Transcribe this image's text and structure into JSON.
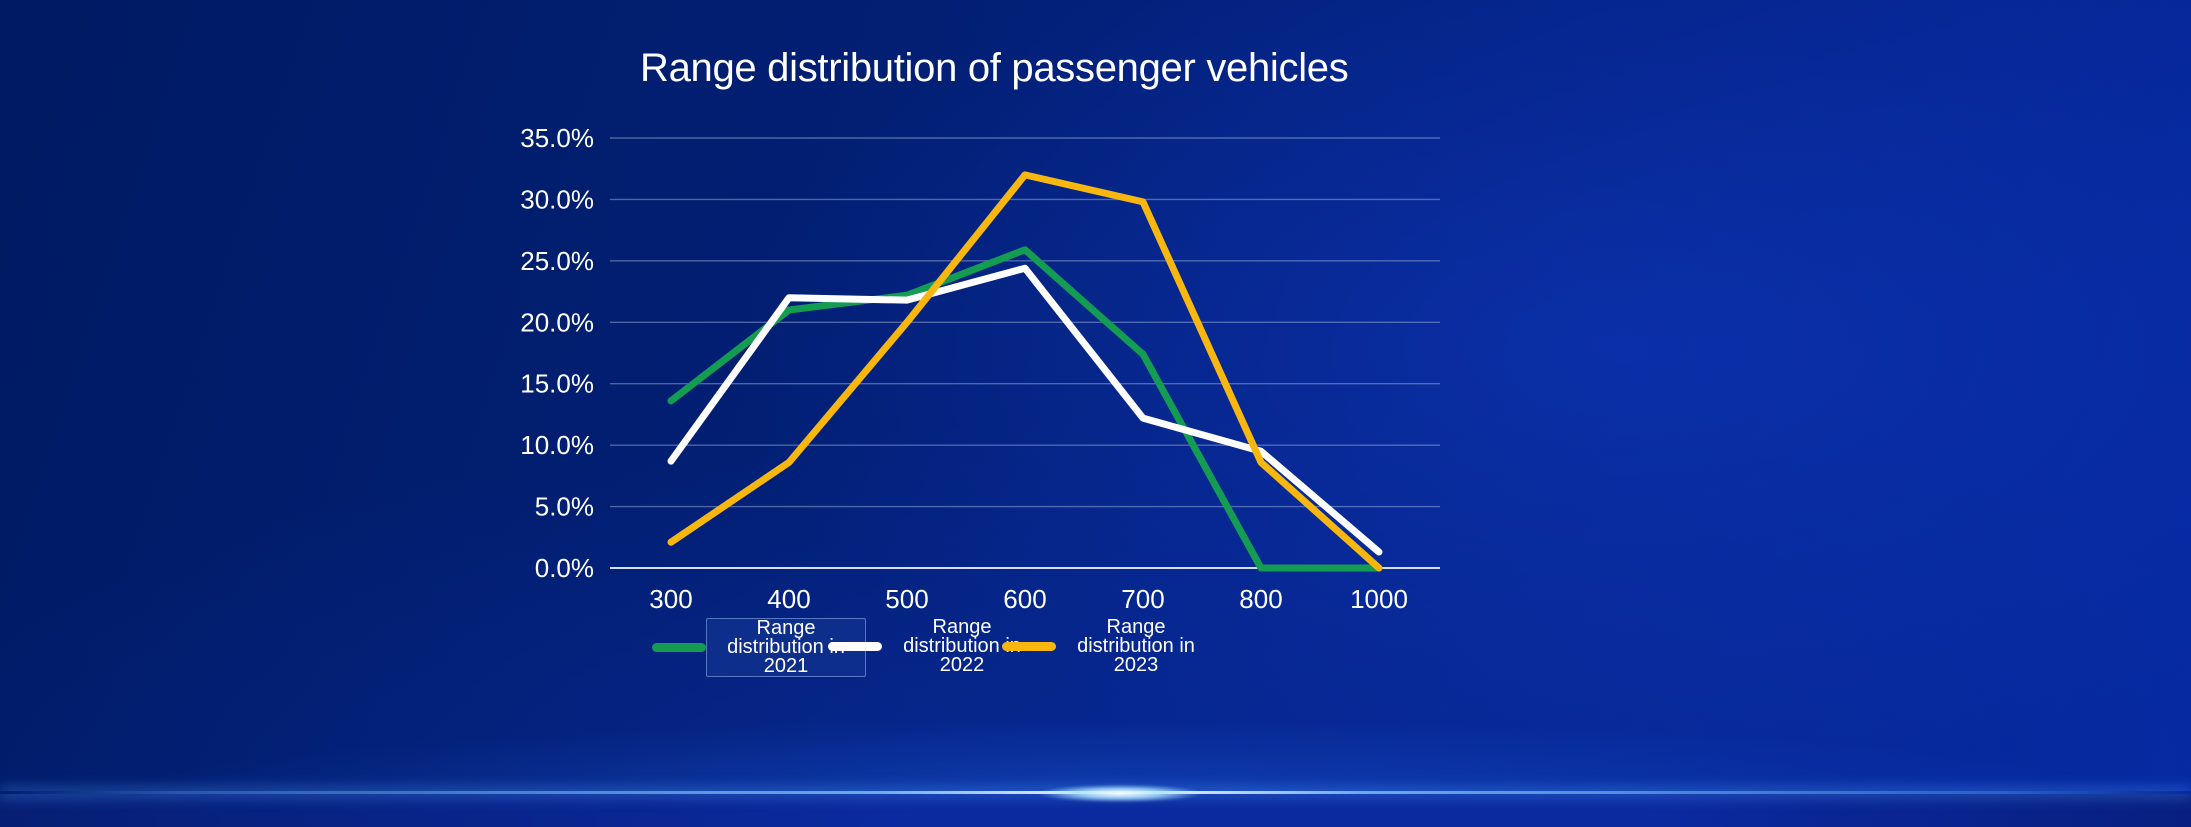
{
  "colors": {
    "background_dark": "#001a63",
    "background_light": "#0629a2",
    "text": "#ffffff",
    "gridline": "#aabce0",
    "axis_line": "#d5deef",
    "glow_line": "#8fd4ff"
  },
  "legend": {
    "position": "bottom",
    "boxed_item_index": 0
  },
  "chart_data": {
    "type": "line",
    "title": "Range distribution of passenger vehicles",
    "categories": [
      "300",
      "400",
      "500",
      "600",
      "700",
      "800",
      "1000"
    ],
    "series": [
      {
        "name": "Range distribution in 2021",
        "color": "#149C52",
        "values": [
          13.6,
          21.0,
          22.2,
          25.9,
          17.4,
          0.0,
          0.0
        ]
      },
      {
        "name": "Range distribution in 2022",
        "color": "#FFFFFF",
        "values": [
          8.7,
          22.0,
          21.8,
          24.4,
          12.2,
          9.5,
          1.3
        ]
      },
      {
        "name": "Range distribution in 2023",
        "color": "#F8B70E",
        "values": [
          2.1,
          8.6,
          20.0,
          32.0,
          29.8,
          8.6,
          0.0
        ]
      }
    ],
    "y_ticks": [
      "0.0%",
      "5.0%",
      "10.0%",
      "15.0%",
      "20.0%",
      "25.0%",
      "30.0%",
      "35.0%"
    ],
    "ylim": [
      0,
      35
    ],
    "xlabel": "",
    "ylabel": "",
    "grid": true,
    "legend_position": "bottom"
  }
}
